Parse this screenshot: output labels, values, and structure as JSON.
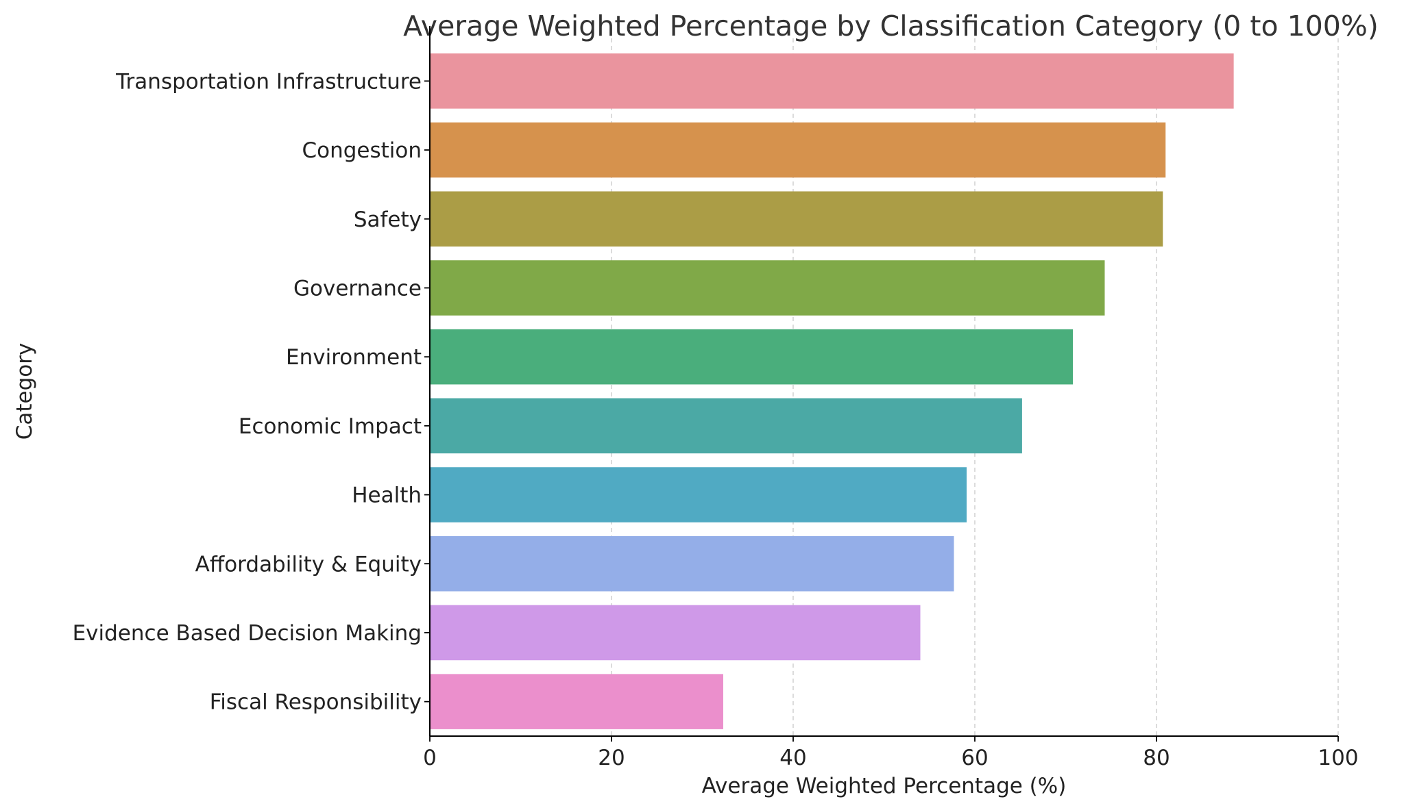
{
  "chart_data": {
    "type": "bar",
    "orientation": "horizontal",
    "title": "Average Weighted Percentage by Classification Category (0 to 100%)",
    "xlabel": "Average Weighted Percentage (%)",
    "ylabel": "Category",
    "xlim": [
      0,
      100
    ],
    "xticks": [
      0,
      20,
      40,
      60,
      80,
      100
    ],
    "grid": "x-axis dashed",
    "categories": [
      "Transportation Infrastructure",
      "Congestion",
      "Safety",
      "Governance",
      "Environment",
      "Economic Impact",
      "Health",
      "Affordability & Equity",
      "Evidence Based Decision Making",
      "Fiscal Responsibility"
    ],
    "values": [
      88.5,
      81.0,
      80.7,
      74.3,
      70.8,
      65.2,
      59.1,
      57.7,
      54.0,
      32.3
    ],
    "colors": [
      "#ea949e",
      "#d6924d",
      "#ab9d46",
      "#80a948",
      "#4aae7c",
      "#4ba9a5",
      "#50aac3",
      "#94aee8",
      "#cf99e8",
      "#eb8fcc"
    ]
  }
}
